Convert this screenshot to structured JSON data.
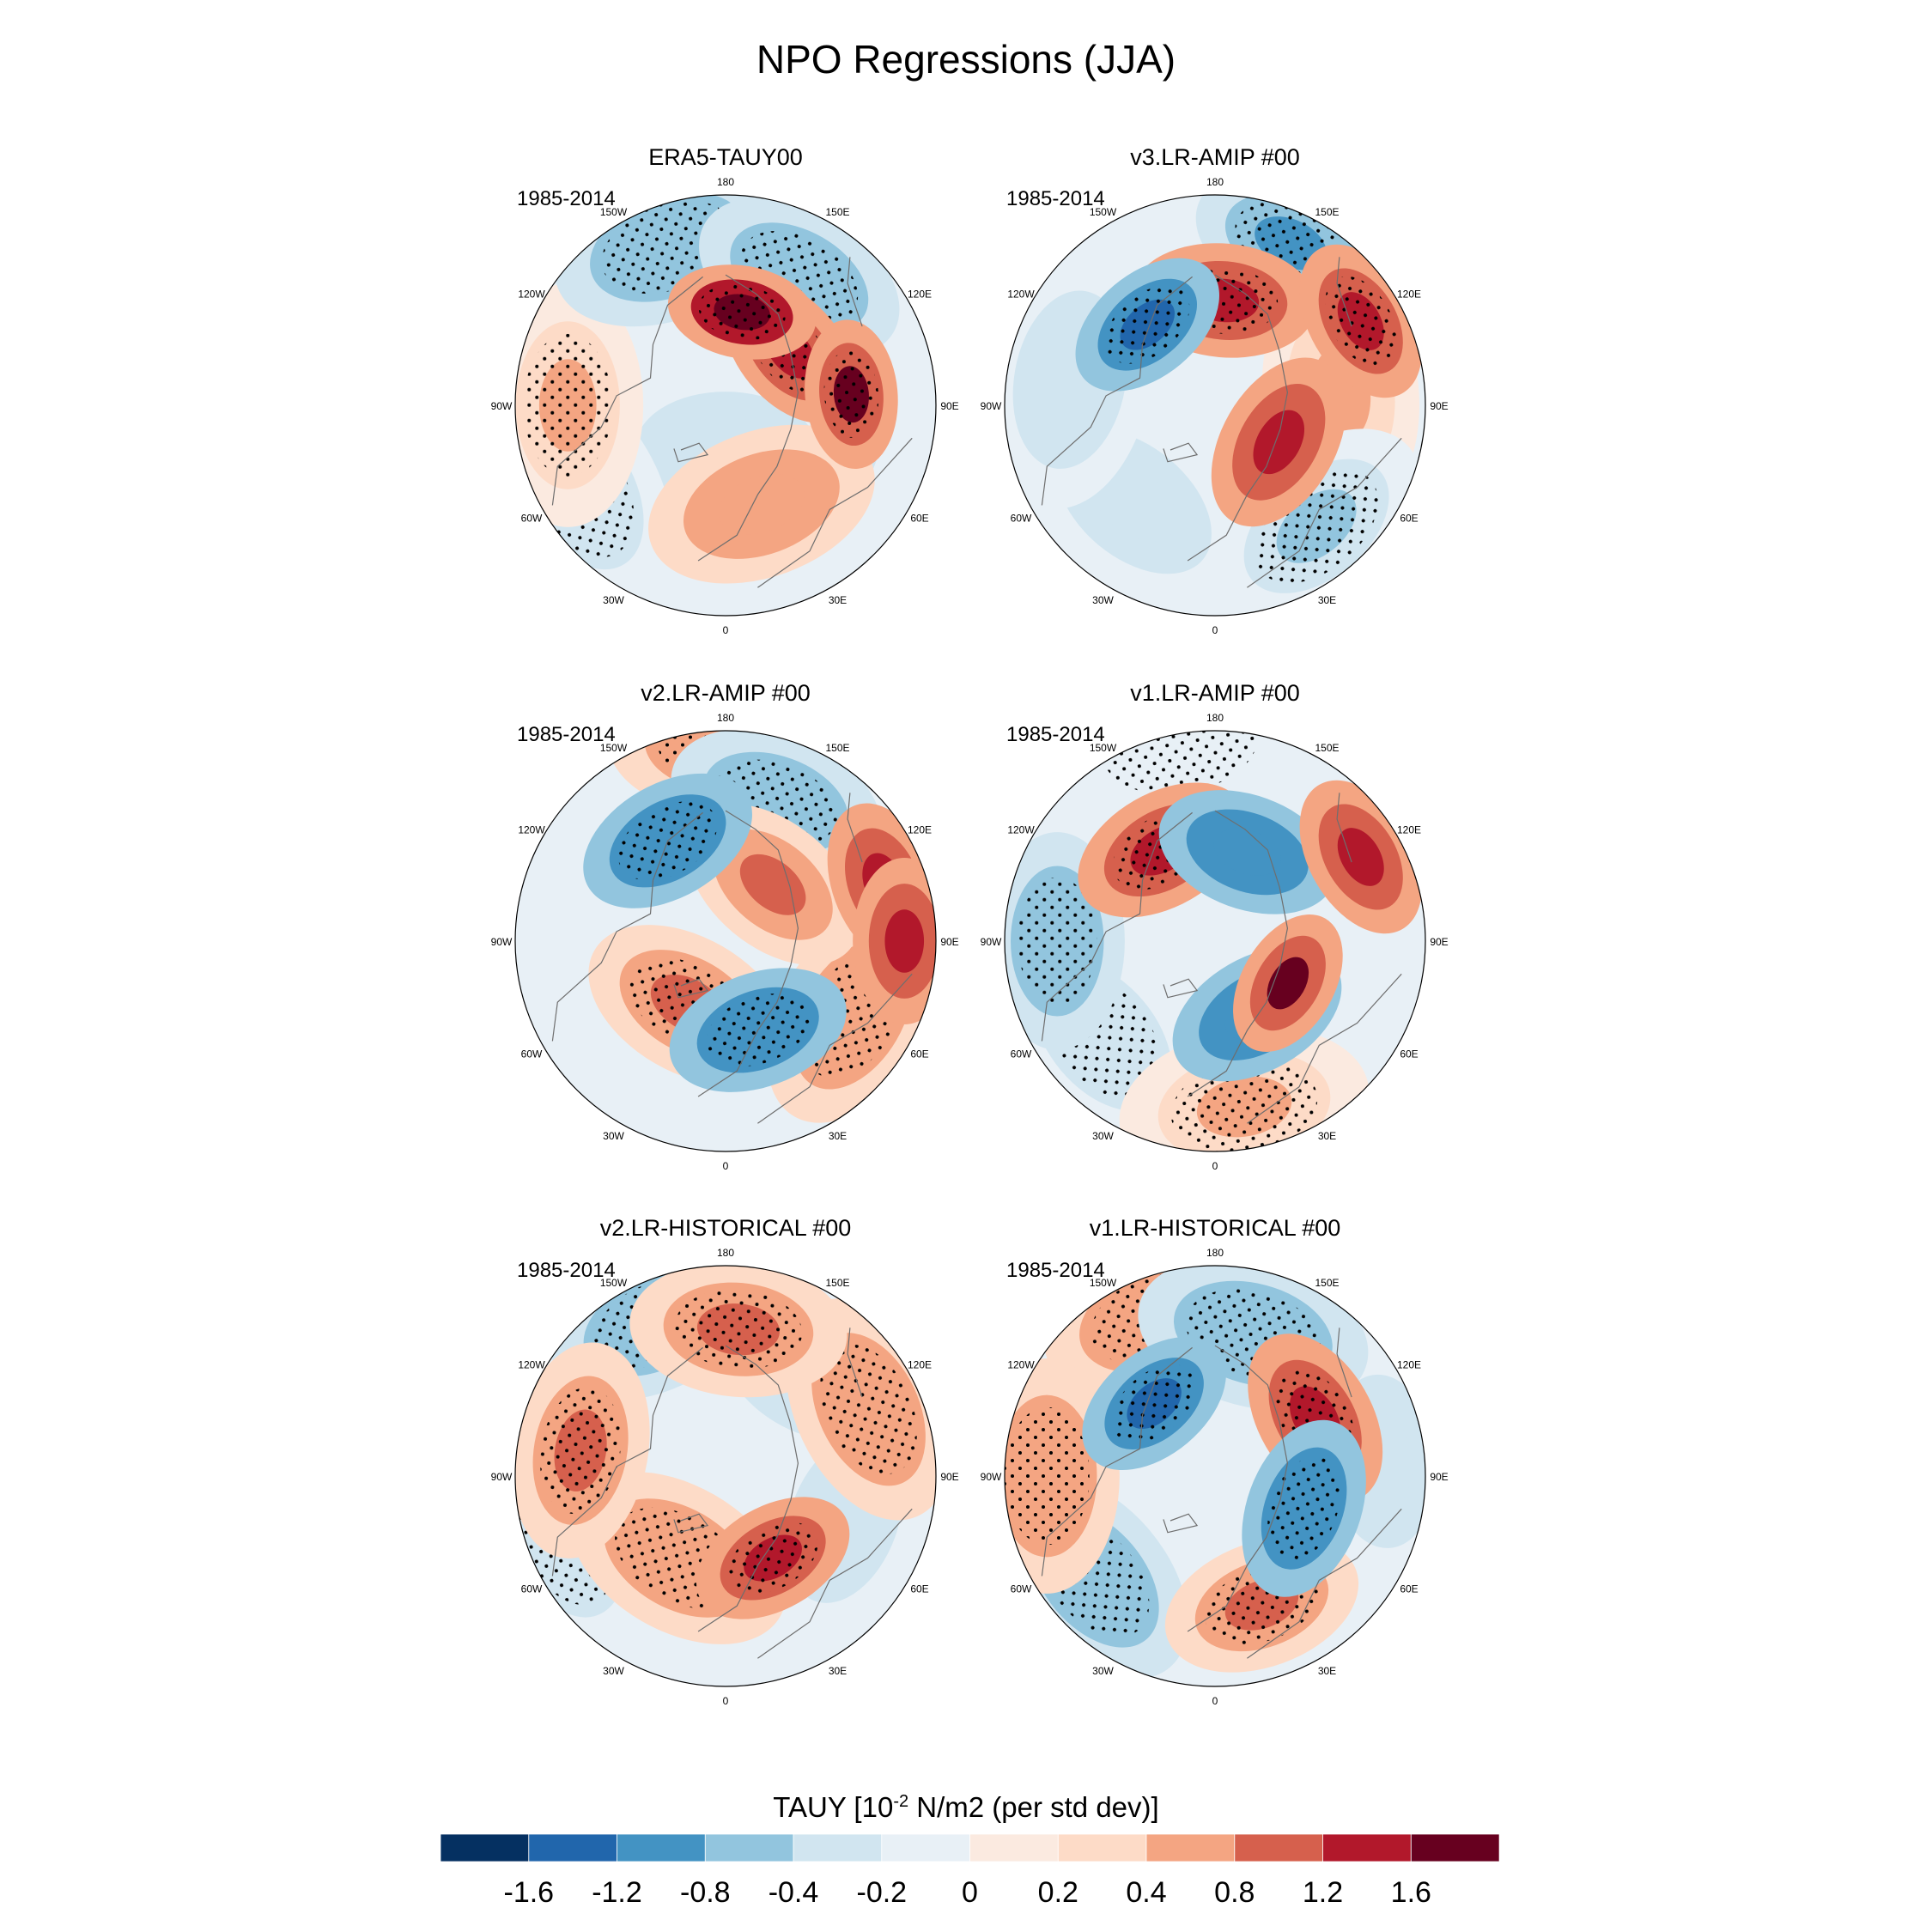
{
  "title": "NPO Regressions (JJA)",
  "longitude_labels": [
    "180",
    "150E",
    "120E",
    "90E",
    "60E",
    "30E",
    "0",
    "30W",
    "60W",
    "90W",
    "120W",
    "150W"
  ],
  "panels": [
    {
      "title": "ERA5-TAUY00",
      "period": "1985-2014"
    },
    {
      "title": "v3.LR-AMIP  #00",
      "period": "1985-2014"
    },
    {
      "title": "v2.LR-AMIP  #00",
      "period": "1985-2014"
    },
    {
      "title": "v1.LR-AMIP  #00",
      "period": "1985-2014"
    },
    {
      "title": "v2.LR-HISTORICAL  #00",
      "period": "1985-2014"
    },
    {
      "title": "v1.LR-HISTORICAL  #00",
      "period": "1985-2014"
    }
  ],
  "colorbar": {
    "title_main": "TAUY [10",
    "title_exp": "-2",
    "title_rest": " N/m2 (per std dev)]",
    "colors": [
      "#053061",
      "#2166ac",
      "#4393c3",
      "#92c5de",
      "#d1e5f0",
      "#e8f0f6",
      "#fbeae0",
      "#fddbc7",
      "#f4a582",
      "#d6604d",
      "#b2182b",
      "#67001f"
    ],
    "ticks": [
      "-1.6",
      "-1.2",
      "-0.8",
      "-0.4",
      "-0.2",
      "0",
      "0.2",
      "0.4",
      "0.8",
      "1.2",
      "1.6"
    ]
  },
  "map_blobs": [
    [
      {
        "lon": 150,
        "r": 0.7,
        "v": -0.8,
        "s": 1
      },
      {
        "lon": -160,
        "r": 0.8,
        "v": -0.6,
        "s": 1
      },
      {
        "lon": 170,
        "r": 0.45,
        "v": 1.8,
        "s": 1
      },
      {
        "lon": 130,
        "r": 0.4,
        "v": 1.4,
        "s": 1
      },
      {
        "lon": 95,
        "r": 0.6,
        "v": 1.6,
        "s": 1
      },
      {
        "lon": 20,
        "r": 0.5,
        "v": 0.6,
        "s": 0
      },
      {
        "lon": -90,
        "r": 0.75,
        "v": 0.5,
        "s": 1
      },
      {
        "lon": -60,
        "r": 0.8,
        "v": -0.4,
        "s": 1
      },
      {
        "lon": 60,
        "r": 0.5,
        "v": -0.3,
        "s": 0
      },
      {
        "lon": 0,
        "r": 0.2,
        "v": -0.3,
        "s": 0
      }
    ],
    [
      {
        "lon": 155,
        "r": 0.85,
        "v": -1.0,
        "s": 1
      },
      {
        "lon": 175,
        "r": 0.5,
        "v": 1.2,
        "s": 1
      },
      {
        "lon": -140,
        "r": 0.5,
        "v": -1.4,
        "s": 1
      },
      {
        "lon": 120,
        "r": 0.8,
        "v": 1.4,
        "s": 1
      },
      {
        "lon": 60,
        "r": 0.35,
        "v": 1.2,
        "s": 0
      },
      {
        "lon": 40,
        "r": 0.75,
        "v": -0.5,
        "s": 1
      },
      {
        "lon": -40,
        "r": 0.6,
        "v": -0.3,
        "s": 0
      },
      {
        "lon": 95,
        "r": 0.6,
        "v": 0.4,
        "s": 0
      },
      {
        "lon": -100,
        "r": 0.7,
        "v": -0.3,
        "s": 0
      }
    ],
    [
      {
        "lon": 180,
        "r": 0.95,
        "v": 0.6,
        "s": 1
      },
      {
        "lon": -150,
        "r": 0.55,
        "v": -1.2,
        "s": 1
      },
      {
        "lon": 160,
        "r": 0.7,
        "v": -0.8,
        "s": 1
      },
      {
        "lon": 110,
        "r": 0.8,
        "v": 1.4,
        "s": 0
      },
      {
        "lon": 140,
        "r": 0.35,
        "v": 1.0,
        "s": 0
      },
      {
        "lon": -30,
        "r": 0.35,
        "v": 0.8,
        "s": 1
      },
      {
        "lon": 20,
        "r": 0.45,
        "v": -1.2,
        "s": 1
      },
      {
        "lon": 60,
        "r": 0.7,
        "v": 0.6,
        "s": 1
      },
      {
        "lon": 90,
        "r": 0.85,
        "v": 1.4,
        "s": 0
      }
    ],
    [
      {
        "lon": -170,
        "r": 0.95,
        "v": -0.2,
        "s": 1
      },
      {
        "lon": -150,
        "r": 0.5,
        "v": 1.2,
        "s": 1
      },
      {
        "lon": 160,
        "r": 0.45,
        "v": -1.2,
        "s": 0
      },
      {
        "lon": 120,
        "r": 0.8,
        "v": 1.4,
        "s": 0
      },
      {
        "lon": 60,
        "r": 0.4,
        "v": 1.6,
        "s": 0
      },
      {
        "lon": 30,
        "r": 0.4,
        "v": -1.2,
        "s": 0
      },
      {
        "lon": -90,
        "r": 0.75,
        "v": -0.8,
        "s": 1
      },
      {
        "lon": -50,
        "r": 0.7,
        "v": -0.4,
        "s": 1
      },
      {
        "lon": 10,
        "r": 0.8,
        "v": 0.4,
        "s": 1
      }
    ],
    [
      {
        "lon": -155,
        "r": 0.8,
        "v": -0.8,
        "s": 1
      },
      {
        "lon": 175,
        "r": 0.7,
        "v": 0.8,
        "s": 1
      },
      {
        "lon": 145,
        "r": 0.6,
        "v": -0.4,
        "s": 0
      },
      {
        "lon": 115,
        "r": 0.75,
        "v": 0.6,
        "s": 1
      },
      {
        "lon": -100,
        "r": 0.7,
        "v": 0.8,
        "s": 1
      },
      {
        "lon": -70,
        "r": 0.8,
        "v": -0.4,
        "s": 1
      },
      {
        "lon": 30,
        "r": 0.45,
        "v": 1.4,
        "s": 1
      },
      {
        "lon": -30,
        "r": 0.45,
        "v": 0.6,
        "s": 1
      },
      {
        "lon": 70,
        "r": 0.6,
        "v": -0.4,
        "s": 0
      }
    ],
    [
      {
        "lon": -160,
        "r": 0.8,
        "v": 0.6,
        "s": 1
      },
      {
        "lon": -140,
        "r": 0.45,
        "v": -1.4,
        "s": 1
      },
      {
        "lon": 165,
        "r": 0.7,
        "v": -0.6,
        "s": 1
      },
      {
        "lon": 120,
        "r": 0.55,
        "v": 1.2,
        "s": 1
      },
      {
        "lon": 70,
        "r": 0.45,
        "v": -1.2,
        "s": 1
      },
      {
        "lon": 20,
        "r": 0.65,
        "v": 1.0,
        "s": 1
      },
      {
        "lon": -50,
        "r": 0.75,
        "v": -0.6,
        "s": 1
      },
      {
        "lon": -90,
        "r": 0.8,
        "v": 0.6,
        "s": 1
      },
      {
        "lon": 95,
        "r": 0.8,
        "v": -0.4,
        "s": 0
      }
    ]
  ]
}
